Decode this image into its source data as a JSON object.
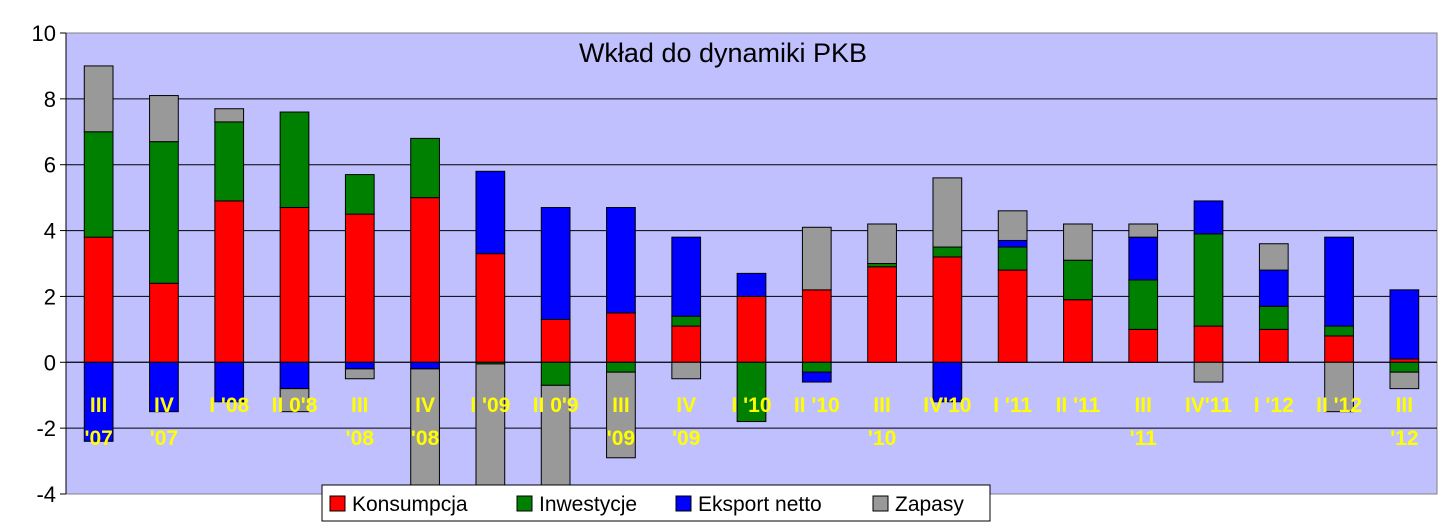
{
  "chart_data": {
    "type": "bar",
    "stacked": true,
    "title": "Wkład do dynamiki PKB",
    "xlabel": "",
    "ylabel": "",
    "ylim": [
      -4,
      10
    ],
    "yticks": [
      -4,
      -2,
      0,
      2,
      4,
      6,
      8,
      10
    ],
    "grid": true,
    "legend_position": "bottom",
    "categories": [
      [
        "III",
        "'07"
      ],
      [
        "IV",
        "'07"
      ],
      [
        "I '08"
      ],
      [
        "II 0'8"
      ],
      [
        "III",
        "'08"
      ],
      [
        "IV",
        "'08"
      ],
      [
        "I '09"
      ],
      [
        "II 0'9"
      ],
      [
        "III",
        "'09"
      ],
      [
        "IV",
        "'09"
      ],
      [
        "I '10"
      ],
      [
        "II '10"
      ],
      [
        "III",
        "'10"
      ],
      [
        "IV'10"
      ],
      [
        "I '11"
      ],
      [
        "II '11"
      ],
      [
        "III",
        "'11"
      ],
      [
        "IV'11"
      ],
      [
        "I '12"
      ],
      [
        "II '12"
      ],
      [
        "III",
        "'12"
      ]
    ],
    "series": [
      {
        "name": "Konsumpcja",
        "color": "#ff0000",
        "values": [
          3.8,
          2.4,
          4.9,
          4.7,
          4.5,
          5.0,
          3.3,
          1.3,
          1.5,
          1.1,
          2.0,
          2.2,
          2.9,
          3.2,
          2.8,
          1.9,
          1.0,
          1.1,
          1.0,
          0.8,
          0.1
        ]
      },
      {
        "name": "Inwestycje",
        "color": "#008000",
        "values": [
          3.2,
          4.3,
          2.4,
          2.9,
          1.2,
          1.8,
          -0.05,
          -0.7,
          -0.3,
          0.3,
          -1.8,
          -0.3,
          0.1,
          0.3,
          0.7,
          1.2,
          1.5,
          2.8,
          0.7,
          0.3,
          -0.3
        ]
      },
      {
        "name": "Eksport netto",
        "color": "#0000ff",
        "values": [
          -2.4,
          -1.5,
          -1.2,
          -0.8,
          -0.2,
          -0.2,
          2.5,
          3.4,
          3.2,
          2.4,
          0.7,
          -0.3,
          0.0,
          -1.2,
          0.2,
          0.0,
          1.3,
          1.0,
          1.1,
          2.7,
          2.1
        ]
      },
      {
        "name": "Zapasy",
        "color": "#999999",
        "values": [
          2.0,
          1.4,
          0.4,
          -0.7,
          -0.3,
          -3.8,
          -4.0,
          -3.8,
          -2.6,
          -0.5,
          0.0,
          1.9,
          1.2,
          2.1,
          0.9,
          1.1,
          0.4,
          -0.6,
          0.8,
          -1.5,
          -0.5
        ]
      }
    ]
  }
}
